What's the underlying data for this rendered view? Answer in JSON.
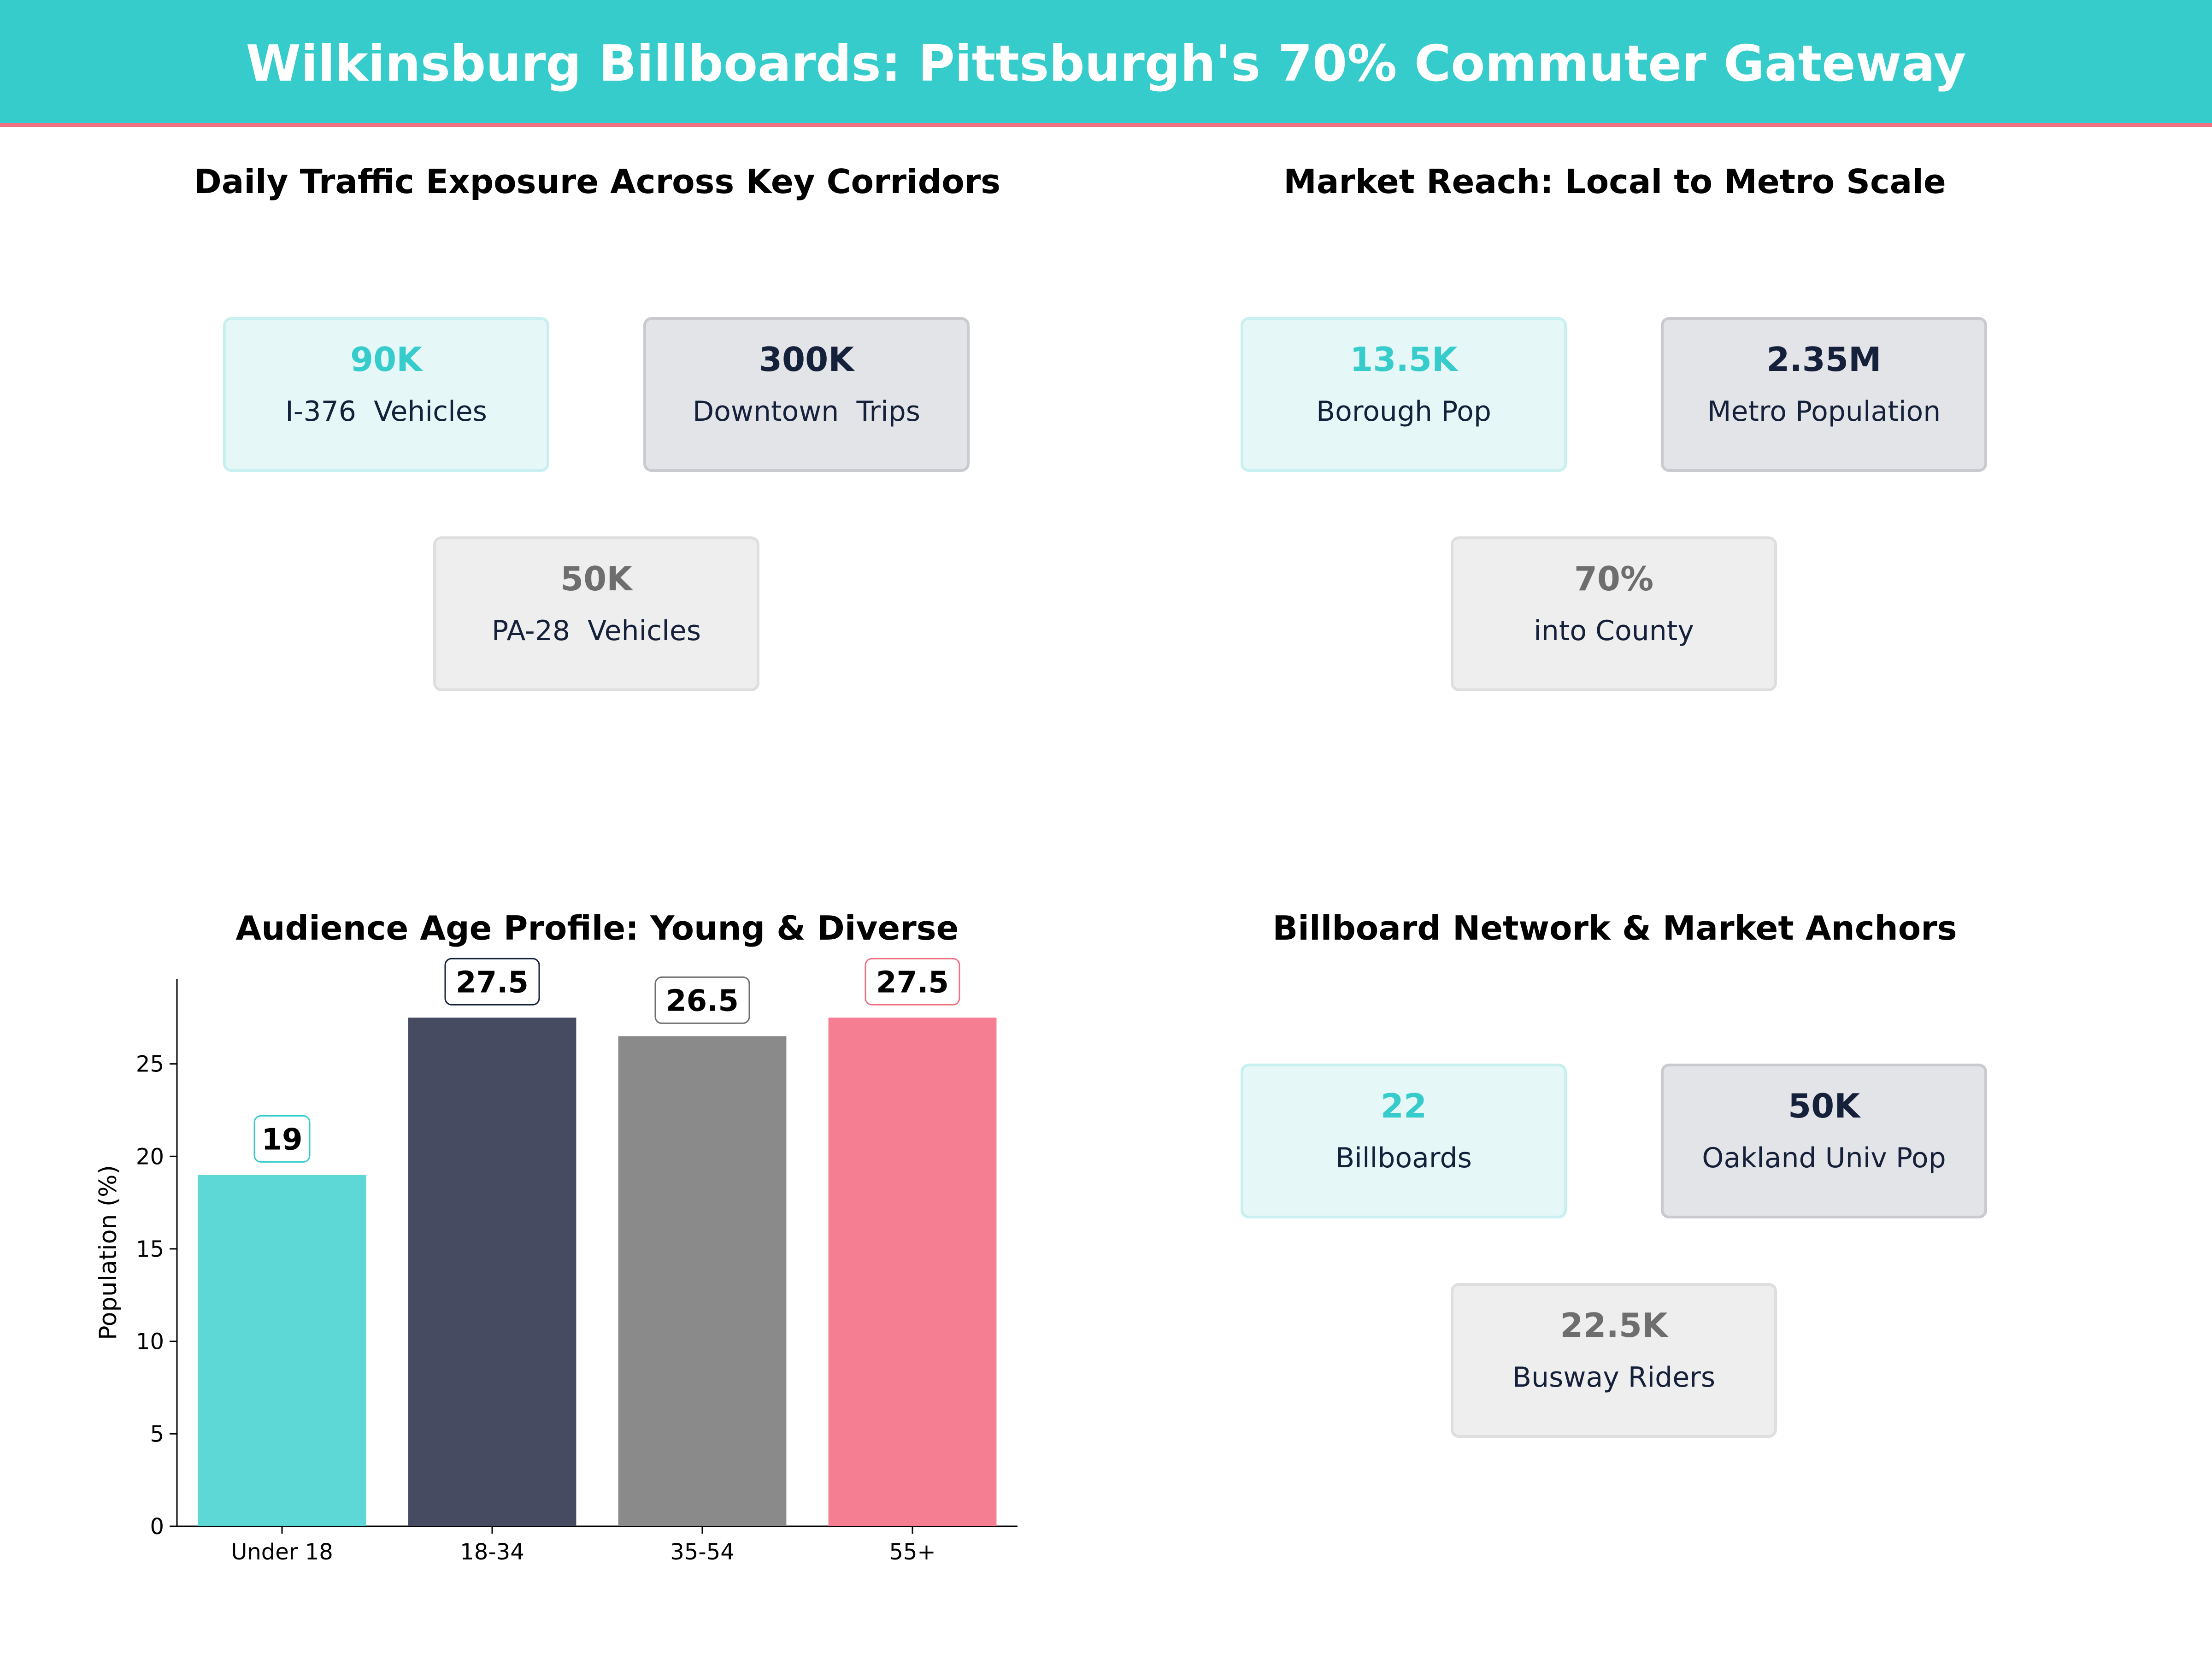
{
  "header": {
    "title": "Wilkinsburg Billboards: Pittsburgh's 70% Commuter Gateway",
    "accent_color": "#36CCCC",
    "underline_color": "#F07080"
  },
  "panels": {
    "traffic": {
      "title": "Daily Traffic Exposure Across Key Corridors",
      "cards": [
        {
          "value": "90K",
          "label": "I-376  Vehicles"
        },
        {
          "value": "300K",
          "label": "Downtown  Trips"
        },
        {
          "value": "50K",
          "label": "PA-28  Vehicles"
        }
      ]
    },
    "reach": {
      "title": "Market Reach: Local to Metro Scale",
      "cards": [
        {
          "value": "13.5K",
          "label": "Borough Pop"
        },
        {
          "value": "2.35M",
          "label": "Metro Population"
        },
        {
          "value": "70%",
          "label": "into County"
        }
      ]
    },
    "network": {
      "title": "Billboard Network & Market Anchors",
      "cards": [
        {
          "value": "22",
          "label": "Billboards"
        },
        {
          "value": "50K",
          "label": "Oakland Univ Pop"
        },
        {
          "value": "22.5K",
          "label": "Busway Riders"
        }
      ]
    }
  },
  "chart_data": {
    "type": "bar",
    "title": "Audience Age Profile: Young & Diverse",
    "categories": [
      "Under 18",
      "18-34",
      "35-54",
      "55+"
    ],
    "values": [
      19,
      27.5,
      26.5,
      27.5
    ],
    "data_labels": [
      "19",
      "27.5",
      "26.5",
      "27.5"
    ],
    "ylabel": "Population (%)",
    "xlabel": "",
    "ylim": [
      0,
      29.6
    ],
    "yticks": [
      0,
      5,
      10,
      15,
      20,
      25
    ],
    "colors": [
      "#5DD8D6",
      "#474B62",
      "#8A8A8A",
      "#F57E92"
    ],
    "label_border_colors": [
      "#36CCCC",
      "#15203A",
      "#6E6E6E",
      "#F07080"
    ],
    "grid": false,
    "legend": "none"
  }
}
